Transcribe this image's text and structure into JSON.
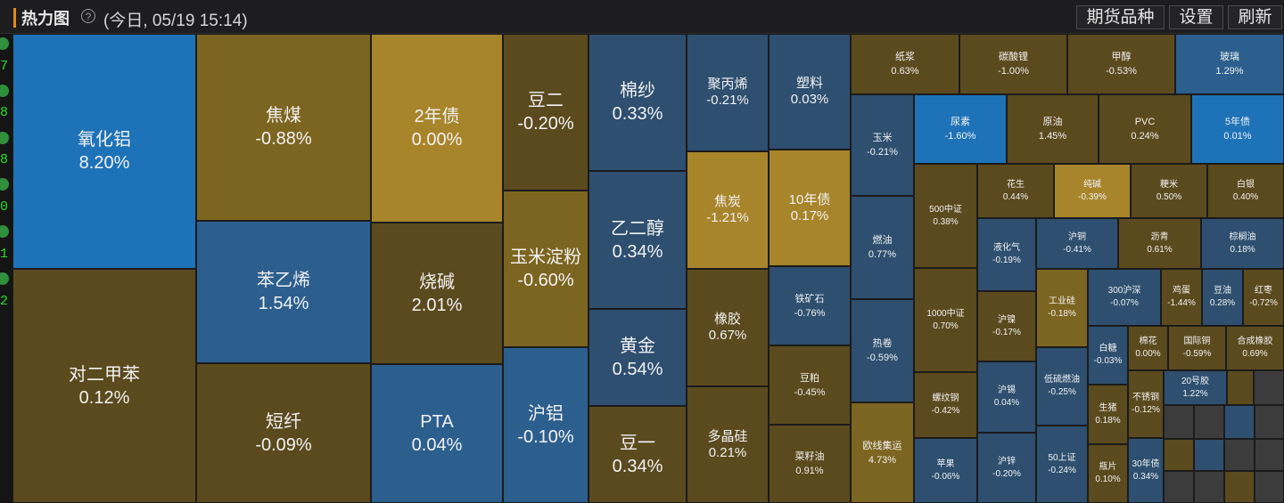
{
  "header": {
    "title": "热力图",
    "help_glyph": "?",
    "subtitle": "(今日, 05/19 15:14)",
    "buttons": [
      "期货品种",
      "设置",
      "刷新"
    ]
  },
  "side_strip": {
    "numbers": [
      "7",
      "8",
      "8",
      "0",
      "1",
      "2"
    ]
  },
  "colors": {
    "blue_bright": "#1e73b8",
    "blue": "#2c5f8e",
    "blue_slate": "#2e4f6f",
    "gold": "#a8852b",
    "olive_bright": "#7c6520",
    "olive": "#5b4a1e",
    "empty": "#3c3c3c"
  },
  "cells": [
    {
      "name": "氧化铝",
      "pct": "8.20%"
    },
    {
      "name": "对二甲苯",
      "pct": "0.12%"
    },
    {
      "name": "焦煤",
      "pct": "-0.88%"
    },
    {
      "name": "苯乙烯",
      "pct": "1.54%"
    },
    {
      "name": "短纤",
      "pct": "-0.09%"
    },
    {
      "name": "2年债",
      "pct": "0.00%"
    },
    {
      "name": "烧碱",
      "pct": "2.01%"
    },
    {
      "name": "PTA",
      "pct": "0.04%"
    },
    {
      "name": "豆二",
      "pct": "-0.20%"
    },
    {
      "name": "玉米淀粉",
      "pct": "-0.60%"
    },
    {
      "name": "沪铝",
      "pct": "-0.10%"
    },
    {
      "name": "棉纱",
      "pct": "0.33%"
    },
    {
      "name": "乙二醇",
      "pct": "0.34%"
    },
    {
      "name": "黄金",
      "pct": "0.54%"
    },
    {
      "name": "豆一",
      "pct": "0.34%"
    },
    {
      "name": "聚丙烯",
      "pct": "-0.21%"
    },
    {
      "name": "焦炭",
      "pct": "-1.21%"
    },
    {
      "name": "橡胶",
      "pct": "0.67%"
    },
    {
      "name": "多晶硅",
      "pct": "0.21%"
    },
    {
      "name": "塑料",
      "pct": "0.03%"
    },
    {
      "name": "10年债",
      "pct": "0.17%"
    },
    {
      "name": "铁矿石",
      "pct": "-0.76%"
    },
    {
      "name": "豆粕",
      "pct": "-0.45%"
    },
    {
      "name": "菜籽油",
      "pct": "0.91%"
    },
    {
      "name": "纸浆",
      "pct": "0.63%"
    },
    {
      "name": "碳酸锂",
      "pct": "-1.00%"
    },
    {
      "name": "甲醇",
      "pct": "-0.53%"
    },
    {
      "name": "玻璃",
      "pct": "1.29%"
    },
    {
      "name": "玉米",
      "pct": "-0.21%"
    },
    {
      "name": "燃油",
      "pct": "0.77%"
    },
    {
      "name": "热卷",
      "pct": "-0.59%"
    },
    {
      "name": "欧线集运",
      "pct": "4.73%"
    },
    {
      "name": "尿素",
      "pct": "-1.60%"
    },
    {
      "name": "原油",
      "pct": "1.45%"
    },
    {
      "name": "PVC",
      "pct": "0.24%"
    },
    {
      "name": "5年债",
      "pct": "0.01%"
    },
    {
      "name": "500中证",
      "pct": "0.38%"
    },
    {
      "name": "1000中证",
      "pct": "0.70%"
    },
    {
      "name": "螺纹钢",
      "pct": "-0.42%"
    },
    {
      "name": "苹果",
      "pct": "-0.06%"
    },
    {
      "name": "花生",
      "pct": "0.44%"
    },
    {
      "name": "纯碱",
      "pct": "-0.39%"
    },
    {
      "name": "粳米",
      "pct": "0.50%"
    },
    {
      "name": "白银",
      "pct": "0.40%"
    },
    {
      "name": "液化气",
      "pct": "-0.19%"
    },
    {
      "name": "沪铜",
      "pct": "-0.41%"
    },
    {
      "name": "沥青",
      "pct": "0.61%"
    },
    {
      "name": "棕榈油",
      "pct": "0.18%"
    },
    {
      "name": "沪镍",
      "pct": "-0.17%"
    },
    {
      "name": "沪锡",
      "pct": "0.04%"
    },
    {
      "name": "沪锌",
      "pct": "-0.20%"
    },
    {
      "name": "工业硅",
      "pct": "-0.18%"
    },
    {
      "name": "低硫燃油",
      "pct": "-0.25%"
    },
    {
      "name": "50上证",
      "pct": "-0.24%"
    },
    {
      "name": "300沪深",
      "pct": "-0.07%"
    },
    {
      "name": "鸡蛋",
      "pct": "-1.44%"
    },
    {
      "name": "豆油",
      "pct": "0.28%"
    },
    {
      "name": "红枣",
      "pct": "-0.72%"
    },
    {
      "name": "白糖",
      "pct": "-0.03%"
    },
    {
      "name": "棉花",
      "pct": "0.00%"
    },
    {
      "name": "国际铜",
      "pct": "-0.59%"
    },
    {
      "name": "合成橡胶",
      "pct": "0.69%"
    },
    {
      "name": "生猪",
      "pct": "0.18%"
    },
    {
      "name": "不锈钢",
      "pct": "-0.12%"
    },
    {
      "name": "20号胶",
      "pct": "1.22%"
    },
    {
      "name": "瓶片",
      "pct": "0.10%"
    },
    {
      "name": "30年债",
      "pct": "0.34%"
    }
  ]
}
